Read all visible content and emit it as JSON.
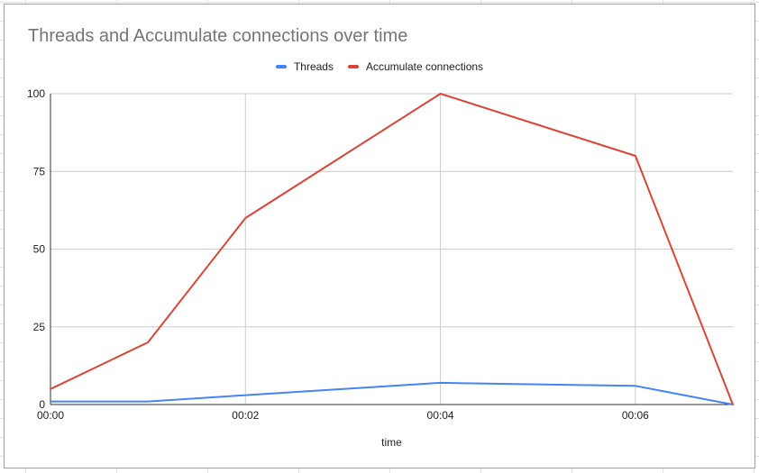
{
  "colors": {
    "threads": "#4285f4",
    "accumulate": "#db4437",
    "grid": "#cccccc",
    "axis": "#333333"
  },
  "chart_data": {
    "type": "line",
    "title": "Threads and Accumulate connections over time",
    "xlabel": "time",
    "ylabel": "",
    "x": [
      "00:00",
      "00:01",
      "00:02",
      "00:03",
      "00:04",
      "00:05",
      "00:06",
      "00:07"
    ],
    "x_ticks": [
      "00:00",
      "00:02",
      "00:04",
      "00:06"
    ],
    "y_ticks": [
      0,
      25,
      50,
      75,
      100
    ],
    "ylim": [
      0,
      100
    ],
    "grid": true,
    "legend_position": "top",
    "series": [
      {
        "name": "Threads",
        "color": "#4285f4",
        "values": [
          1,
          1,
          3,
          5,
          7,
          6.5,
          6,
          0
        ]
      },
      {
        "name": "Accumulate connections",
        "color": "#db4437",
        "values": [
          5,
          20,
          60,
          80,
          100,
          90,
          80,
          0
        ]
      }
    ]
  }
}
